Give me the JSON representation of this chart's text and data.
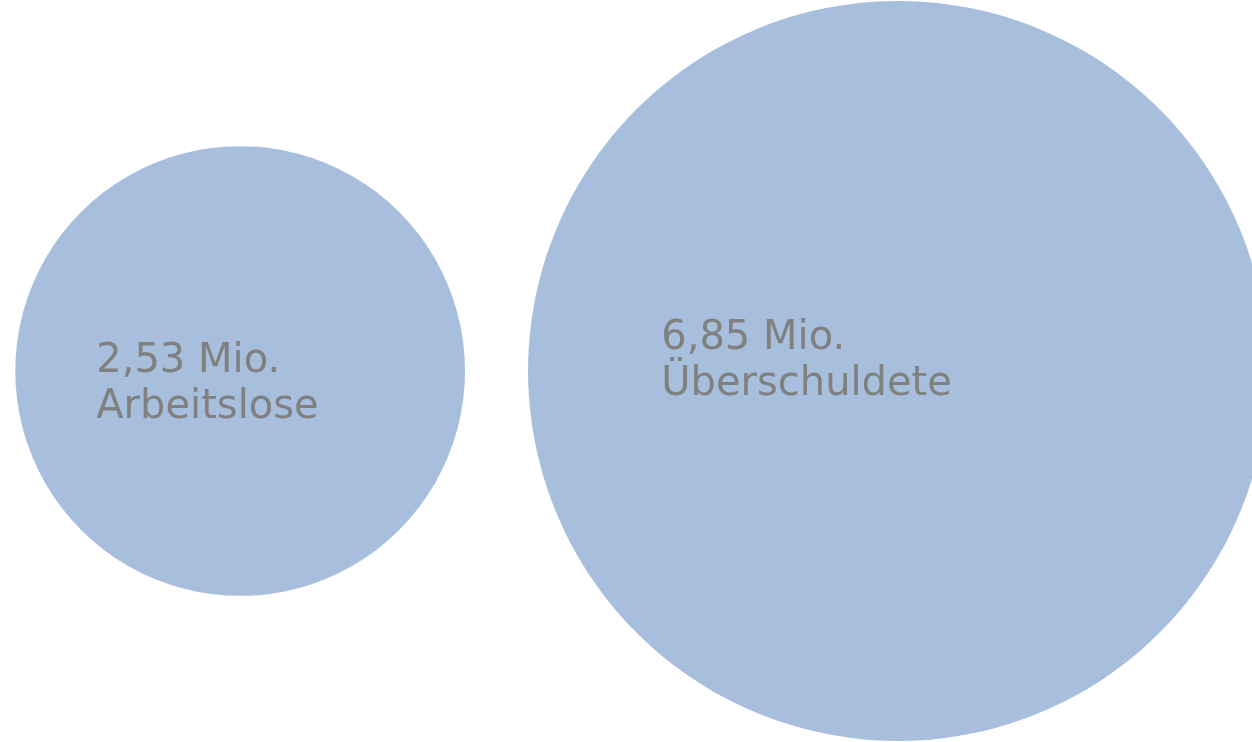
{
  "chart_data": {
    "type": "other",
    "categories": [
      "Arbeitslose",
      "Überschuldete"
    ],
    "values": [
      2.53,
      6.85
    ],
    "value_labels": [
      "2,53 Mio.",
      "6,85 Mio."
    ],
    "color": "#a7bfdd"
  }
}
